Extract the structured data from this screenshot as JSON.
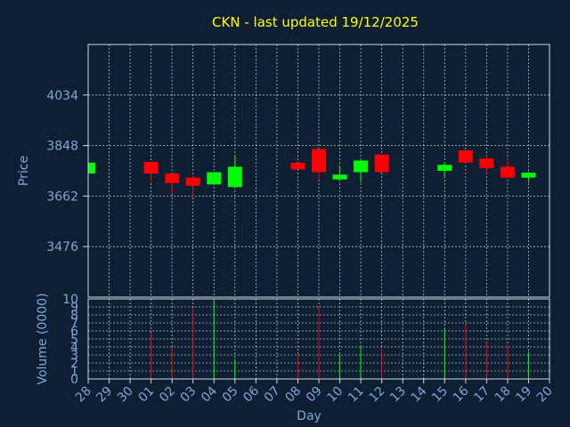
{
  "chart_data": {
    "type": "candlestick",
    "title": "CKN - last updated 19/12/2025",
    "xlabel": "Day",
    "price_panel": {
      "ylabel": "Price",
      "yticks": [
        3476,
        3662,
        3848,
        4034
      ],
      "ylim": [
        3290,
        4220
      ],
      "grid": true
    },
    "volume_panel": {
      "ylabel": "Volume (0000)",
      "yticks": [
        0,
        1,
        2,
        3,
        4,
        5,
        6,
        7,
        8,
        9,
        10
      ],
      "ylim": [
        0,
        10
      ],
      "grid": true
    },
    "x_ticks": [
      "28",
      "29",
      "30",
      "01",
      "02",
      "03",
      "04",
      "05",
      "06",
      "07",
      "08",
      "09",
      "10",
      "11",
      "12",
      "13",
      "14",
      "15",
      "16",
      "17",
      "18",
      "19",
      "20"
    ],
    "up_color": "#00ff00",
    "down_color": "#ff0000",
    "candles": [
      {
        "day": "28",
        "open": 3745,
        "high": 3785,
        "low": 3745,
        "close": 3785,
        "volume": 0
      },
      {
        "day": "01",
        "open": 3788,
        "high": 3788,
        "low": 3713,
        "close": 3745,
        "volume": 5.8
      },
      {
        "day": "02",
        "open": 3745,
        "high": 3745,
        "low": 3672,
        "close": 3710,
        "volume": 4.0
      },
      {
        "day": "03",
        "open": 3730,
        "high": 3738,
        "low": 3660,
        "close": 3700,
        "volume": 8.8
      },
      {
        "day": "04",
        "open": 3705,
        "high": 3750,
        "low": 3705,
        "close": 3750,
        "volume": 9.8
      },
      {
        "day": "05",
        "open": 3695,
        "high": 3810,
        "low": 3695,
        "close": 3770,
        "volume": 2.5
      },
      {
        "day": "08",
        "open": 3785,
        "high": 3785,
        "low": 3760,
        "close": 3760,
        "volume": 3.0
      },
      {
        "day": "09",
        "open": 3835,
        "high": 3835,
        "low": 3722,
        "close": 3750,
        "volume": 9.0
      },
      {
        "day": "10",
        "open": 3723,
        "high": 3773,
        "low": 3723,
        "close": 3741,
        "volume": 3.0
      },
      {
        "day": "11",
        "open": 3750,
        "high": 3793,
        "low": 3712,
        "close": 3793,
        "volume": 4.0
      },
      {
        "day": "12",
        "open": 3815,
        "high": 3815,
        "low": 3750,
        "close": 3750,
        "volume": 4.0
      },
      {
        "day": "15",
        "open": 3755,
        "high": 3788,
        "low": 3730,
        "close": 3777,
        "volume": 6.3
      },
      {
        "day": "16",
        "open": 3830,
        "high": 3830,
        "low": 3780,
        "close": 3785,
        "volume": 7.0
      },
      {
        "day": "17",
        "open": 3800,
        "high": 3810,
        "low": 3745,
        "close": 3765,
        "volume": 4.6
      },
      {
        "day": "18",
        "open": 3770,
        "high": 3798,
        "low": 3730,
        "close": 3730,
        "volume": 4.3
      },
      {
        "day": "19",
        "open": 3730,
        "high": 3752,
        "low": 3712,
        "close": 3748,
        "volume": 3.4
      }
    ]
  }
}
